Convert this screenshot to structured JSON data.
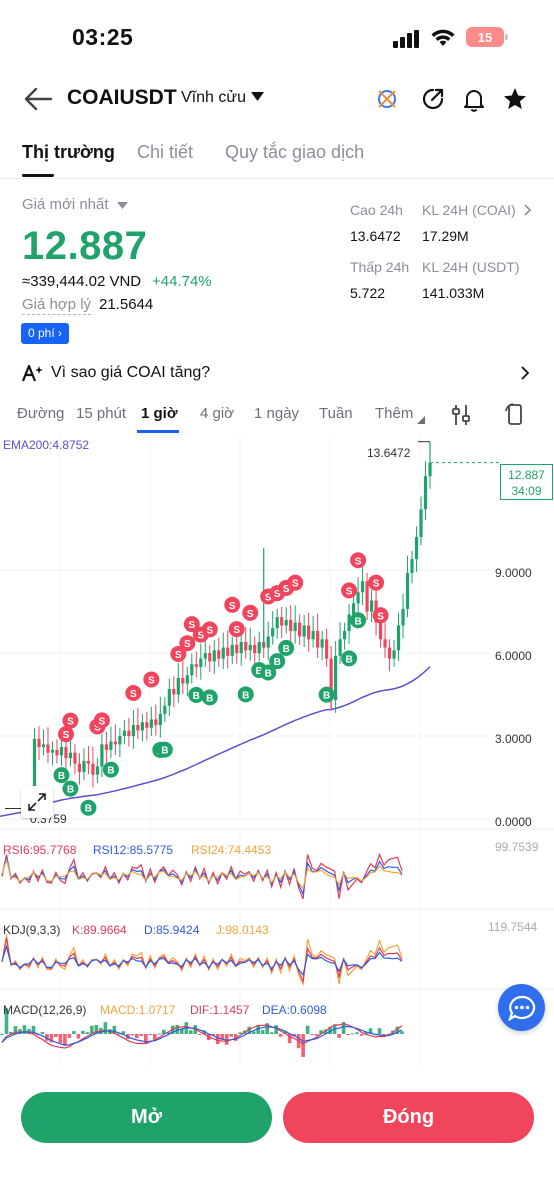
{
  "status": {
    "time": "03:25",
    "battery": "15"
  },
  "header": {
    "symbol": "COAIUSDT",
    "contract_type": "Vĩnh cửu"
  },
  "tabs": [
    {
      "label": "Thị trường"
    },
    {
      "label": "Chi tiết"
    },
    {
      "label": "Quy tắc giao dịch"
    }
  ],
  "price": {
    "last_label": "Giá mới nhất",
    "last": "12.887",
    "vnd": "≈339,444.02 VND",
    "change": "+44.74%",
    "fair_label": "Giá hợp lý",
    "fair_value": "21.5644",
    "fee_badge": "0 phí"
  },
  "stats": {
    "high_label": "Cao 24h",
    "high_value": "13.6472",
    "vol_coai_label": "KL 24H (COAI)",
    "vol_coai_value": "17.29M",
    "low_label": "Thấp 24h",
    "low_value": "5.722",
    "vol_usdt_label": "KL 24H  (USDT)",
    "vol_usdt_value": "141.033M"
  },
  "news": {
    "text": "Vì sao giá COAI tăng?"
  },
  "intervals": [
    {
      "label": "Đường"
    },
    {
      "label": "15 phút"
    },
    {
      "label": "1 giờ"
    },
    {
      "label": "4 giờ"
    },
    {
      "label": "1 ngày"
    },
    {
      "label": "Tuần"
    },
    {
      "label": "Thêm"
    }
  ],
  "chart_data": {
    "type": "candlestick",
    "interval": "1 giờ",
    "ema_label": "EMA200:4.8752",
    "y_ticks": [
      "9.0000",
      "6.0000",
      "3.0000",
      "0.0000"
    ],
    "y_values": [
      9.0,
      6.0,
      3.0,
      0.0
    ],
    "ylim": [
      0,
      13.2
    ],
    "high_marker": "13.6472",
    "low_marker": "0.3759",
    "last_price": "12.887",
    "countdown": "34:09",
    "rsi": {
      "rsi6": "RSI6:95.7768",
      "rsi12": "RSI12:85.5775",
      "rsi24": "RSI24:74.4453",
      "max": "99.7539"
    },
    "kdj": {
      "label": "KDJ(9,3,3)",
      "k": "K:89.9664",
      "d": "D:85.9424",
      "j": "J:98.0143",
      "max": "119.7544"
    },
    "macd": {
      "label": "MACD(12,26,9)",
      "macd": "MACD:1.0717",
      "dif": "DIF:1.1457",
      "dea": "DEA:0.6098"
    },
    "closes": [
      0.6,
      2.9,
      2.6,
      2.7,
      2.4,
      2.5,
      2.3,
      2.6,
      2.2,
      2.4,
      2.0,
      1.7,
      2.1,
      2.0,
      1.6,
      1.9,
      2.7,
      2.5,
      2.8,
      2.7,
      3.0,
      3.2,
      3.0,
      3.4,
      3.2,
      3.5,
      3.3,
      3.6,
      3.4,
      3.8,
      4.1,
      4.7,
      4.5,
      5.1,
      4.9,
      5.2,
      5.6,
      5.5,
      5.8,
      6.0,
      5.7,
      6.1,
      5.8,
      6.2,
      5.9,
      6.3,
      6.0,
      6.4,
      6.1,
      6.3,
      6.0,
      6.4,
      6.2,
      6.6,
      6.9,
      7.3,
      7.0,
      7.2,
      6.8,
      7.1,
      6.6,
      7.0,
      6.5,
      6.8,
      6.2,
      6.5,
      5.8,
      4.3,
      5.9,
      6.5,
      6.8,
      7.4,
      7.8,
      8.2,
      8.6,
      7.5,
      7.9,
      7.1,
      6.5,
      6.2,
      5.8,
      6.1,
      7.0,
      7.6,
      8.9,
      9.4,
      10.2,
      11.2,
      12.4,
      12.887
    ],
    "buy_markers": [
      "B",
      "B",
      "B",
      "B",
      "B",
      "B",
      "B",
      "B",
      "B",
      "B",
      "B",
      "B",
      "B",
      "B",
      "B",
      "B"
    ],
    "sell_markers": [
      "S",
      "S",
      "S",
      "S",
      "S",
      "S",
      "S",
      "S",
      "S",
      "S",
      "S",
      "S",
      "S",
      "S",
      "S",
      "S",
      "S",
      "S",
      "S",
      "S",
      "S",
      "S"
    ]
  },
  "buttons": {
    "open": "Mở",
    "close": "Đóng"
  },
  "colors": {
    "up": "#1fa36a",
    "down": "#f0455d",
    "ema": "#5b4fcf",
    "accent": "#1663f5"
  }
}
